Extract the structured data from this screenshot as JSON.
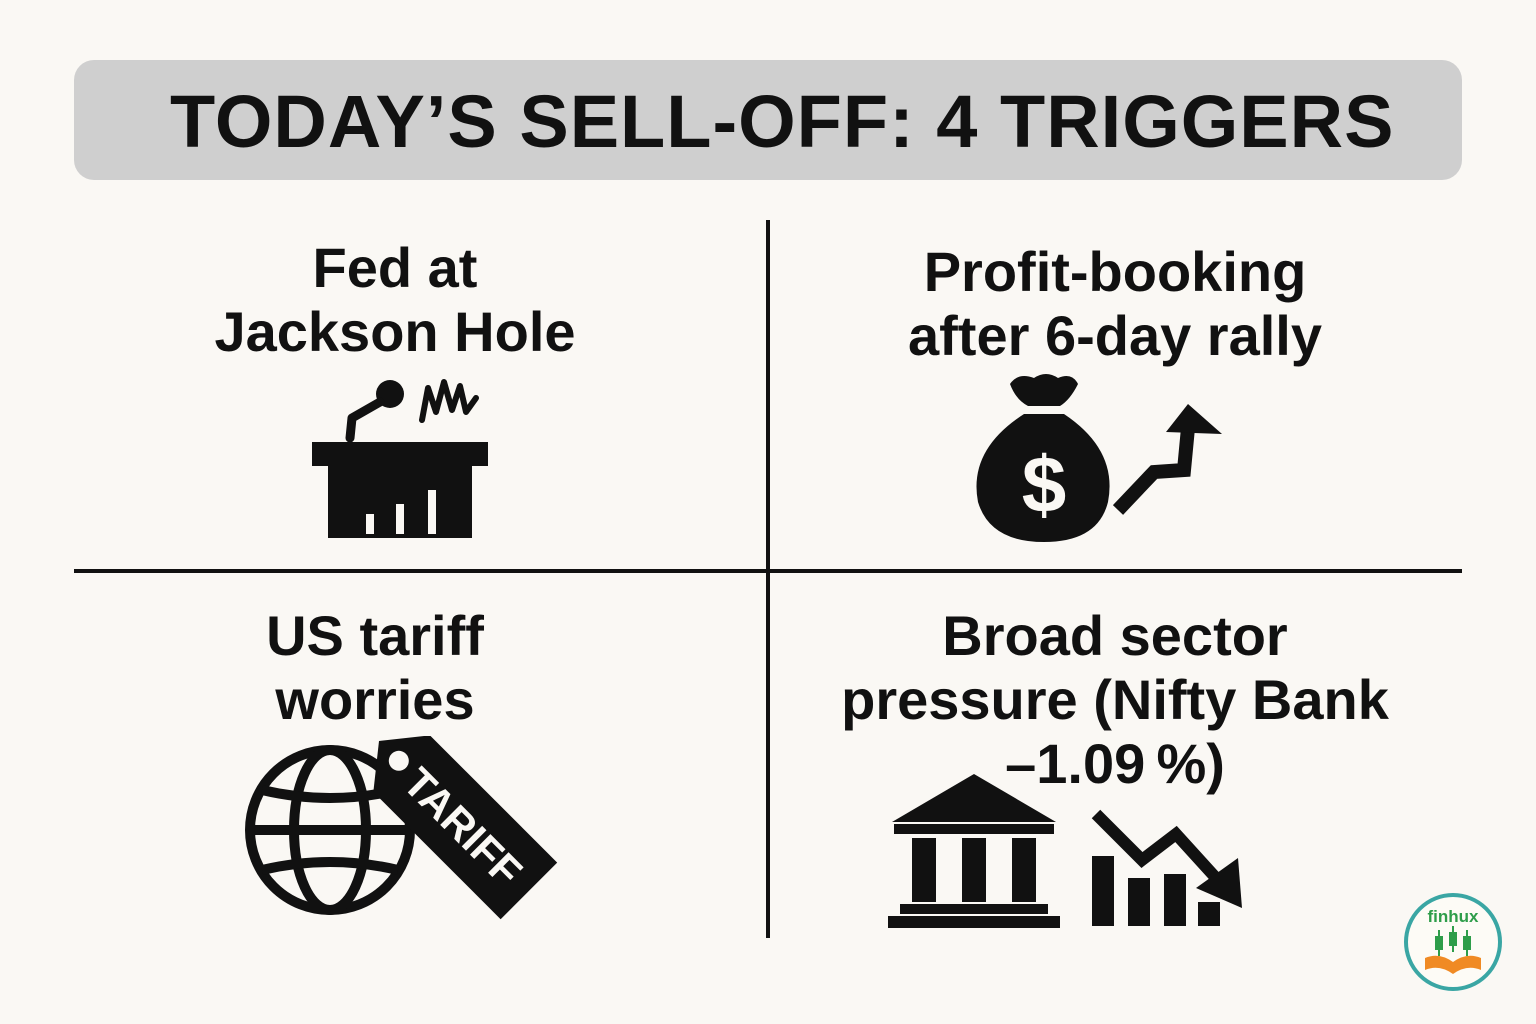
{
  "title": "TODAY’S SELL-OFF: 4 TRIGGERS",
  "quadrants": [
    {
      "line1": "Fed at",
      "line2": "Jackson Hole",
      "line3": "",
      "icon": "podium-microphone-icon"
    },
    {
      "line1": "Profit-booking",
      "line2": "after 6-day rally",
      "line3": "",
      "icon": "money-bag-arrow-up-icon"
    },
    {
      "line1": "US tariff",
      "line2": "worries",
      "line3": "",
      "icon": "globe-tariff-tag-icon"
    },
    {
      "line1": "Broad sector",
      "line2": "pressure (Nifty Bank",
      "line3": "–1.09 %)",
      "icon": "bank-declining-chart-icon"
    }
  ],
  "tag_text": "TARIFF",
  "logo": {
    "text": "finhux",
    "colors": {
      "ring": "#3aa6a4",
      "green": "#2e9d4a",
      "orange": "#f08a24"
    }
  },
  "colors": {
    "background": "#faf8f4",
    "title_bar": "#cfcfcf",
    "ink": "#111111"
  }
}
